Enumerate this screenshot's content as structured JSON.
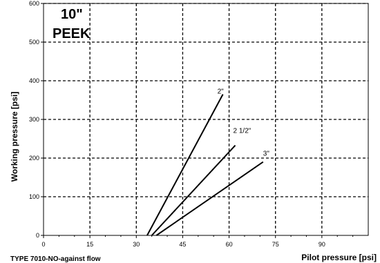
{
  "chart_data": {
    "type": "line",
    "title": "10\"",
    "subtitle": "PEEK",
    "xlabel": "Pilot pressure [psi]",
    "ylabel": "Working pressure [psi]",
    "footer": "TYPE 7010-NO-against flow",
    "xlim": [
      0,
      105
    ],
    "ylim": [
      0,
      600
    ],
    "x_ticks": [
      0,
      15,
      30,
      45,
      60,
      75,
      90
    ],
    "y_ticks": [
      0,
      100,
      200,
      300,
      400,
      500,
      600
    ],
    "grid": true,
    "series": [
      {
        "name": "2\"",
        "x": [
          33.5,
          58
        ],
        "y": [
          0,
          365
        ]
      },
      {
        "name": "2 1/2\"",
        "x": [
          35,
          62
        ],
        "y": [
          0,
          233
        ]
      },
      {
        "name": "3\"",
        "x": [
          36.5,
          71
        ],
        "y": [
          0,
          190
        ]
      }
    ]
  }
}
